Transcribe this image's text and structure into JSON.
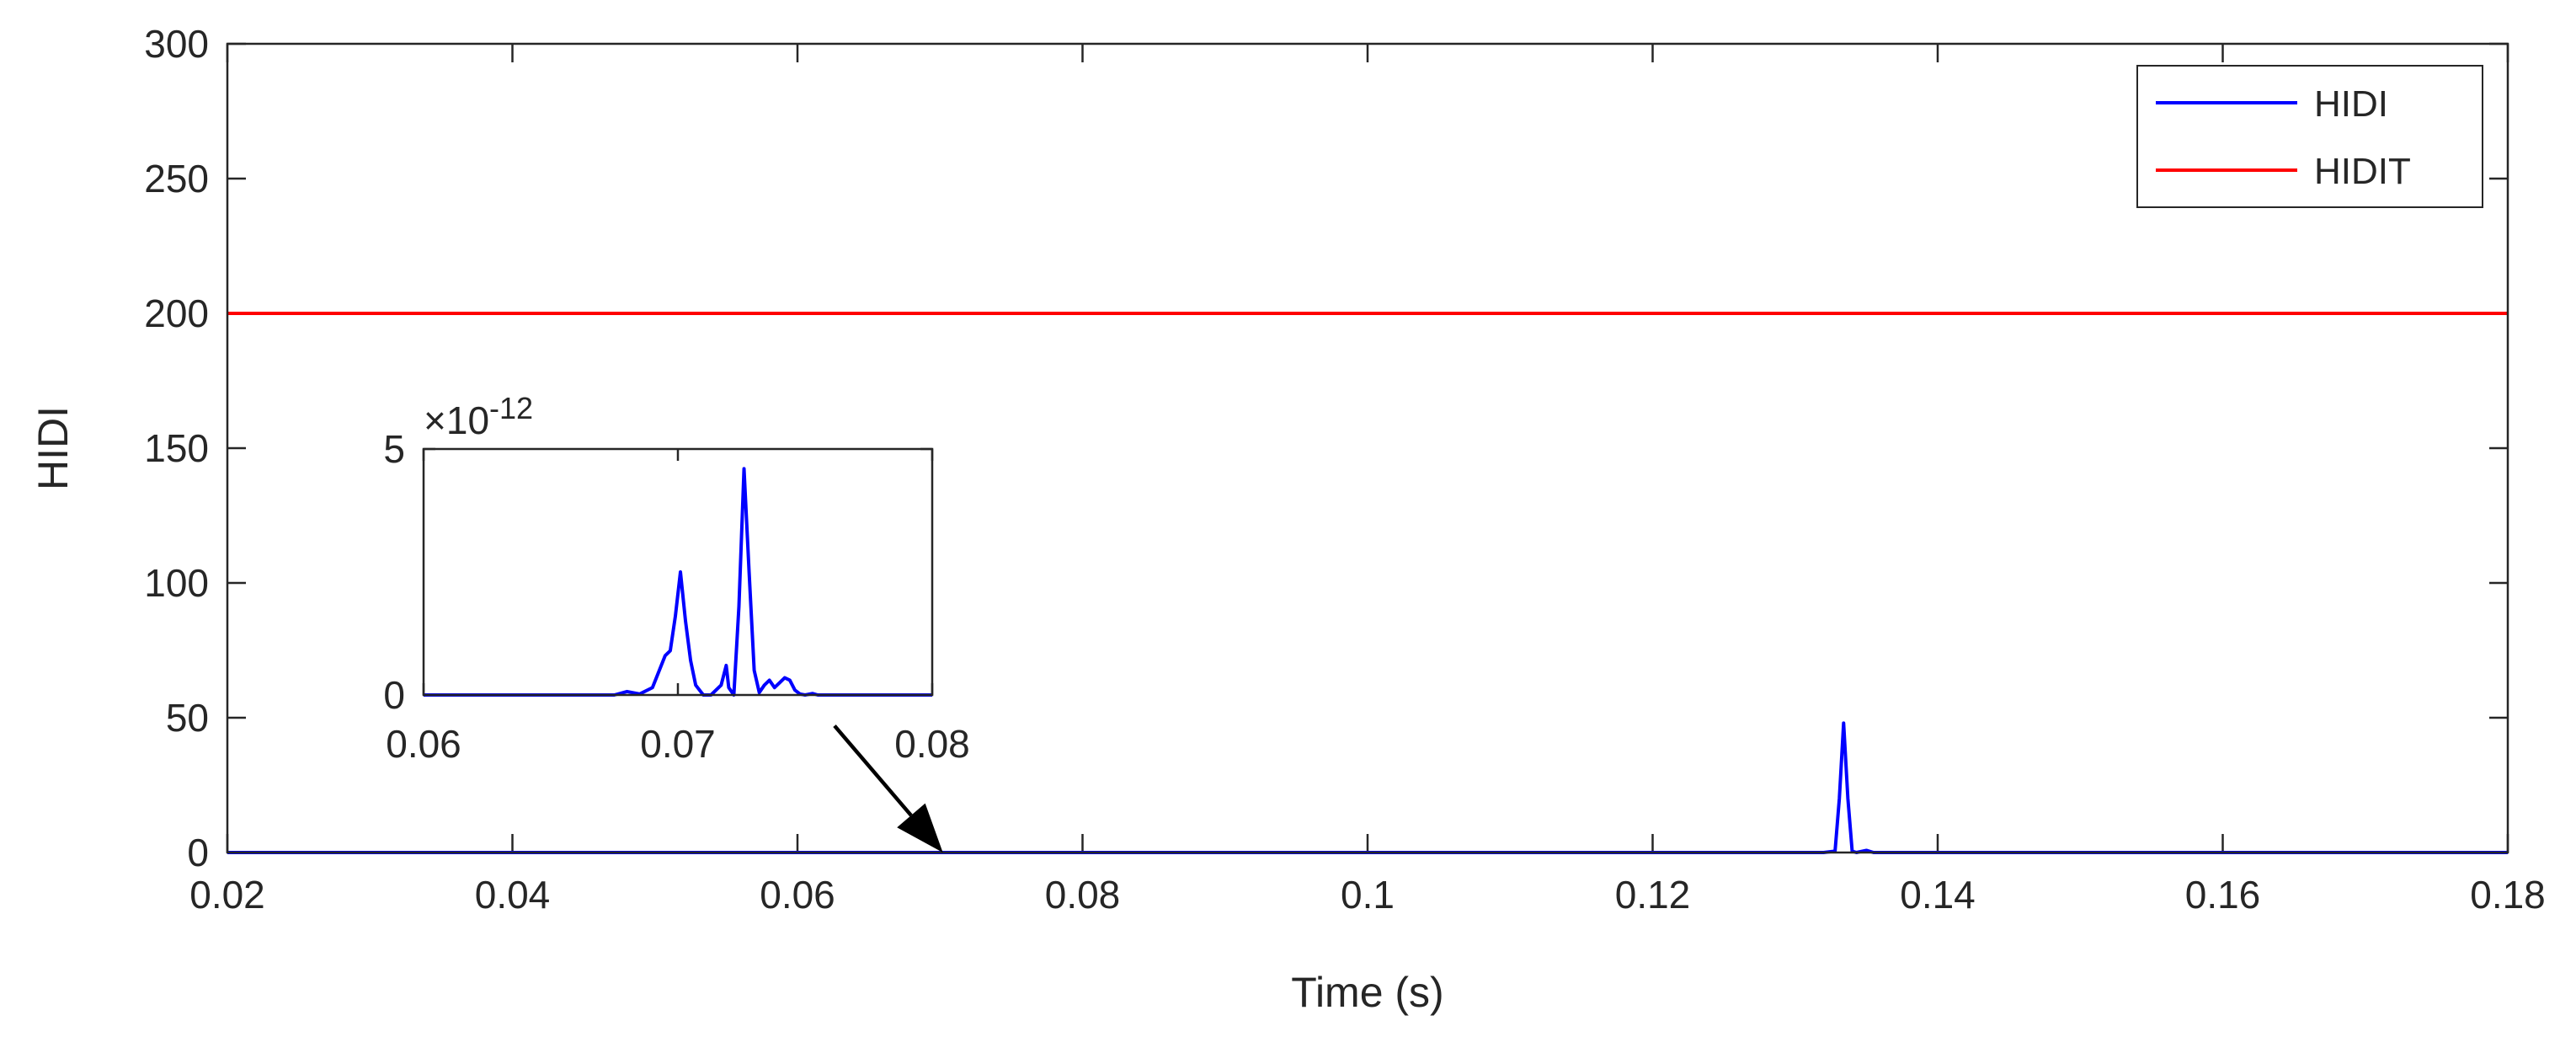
{
  "chart_data": [
    {
      "type": "line",
      "xlabel": "Time (s)",
      "ylabel": "HIDI",
      "xlim": [
        0.02,
        0.18
      ],
      "ylim": [
        0,
        300
      ],
      "xticks": [
        "0.02",
        "0.04",
        "0.06",
        "0.08",
        "0.1",
        "0.12",
        "0.14",
        "0.16",
        "0.18"
      ],
      "yticks": [
        "0",
        "50",
        "100",
        "150",
        "200",
        "250",
        "300"
      ],
      "legend_position": "top-right",
      "series": [
        {
          "name": "HIDI",
          "color": "#0000ff",
          "x": [
            0.02,
            0.132,
            0.1328,
            0.1331,
            0.1334,
            0.1337,
            0.134,
            0.1343,
            0.135,
            0.1355,
            0.136,
            0.18
          ],
          "y": [
            0,
            0,
            0.5,
            20,
            48,
            20,
            0.5,
            0,
            0.8,
            0,
            0,
            0
          ]
        },
        {
          "name": "HIDIT",
          "color": "#ff0000",
          "x": [
            0.02,
            0.18
          ],
          "y": [
            200,
            200
          ]
        }
      ],
      "annotation": {
        "type": "arrow",
        "from": [
          0.0626,
          47
        ],
        "to": [
          0.0702,
          0
        ]
      }
    },
    {
      "type": "line",
      "inset": true,
      "xlim": [
        0.06,
        0.08
      ],
      "ylim": [
        0,
        5
      ],
      "y_multiplier": "×10",
      "y_exponent": "-12",
      "xticks": [
        "0.06",
        "0.07",
        "0.08"
      ],
      "yticks": [
        "0",
        "5"
      ],
      "series": [
        {
          "color": "#0000ff",
          "x": [
            0.06,
            0.0675,
            0.068,
            0.0685,
            0.069,
            0.0695,
            0.0697,
            0.0699,
            0.0701,
            0.0703,
            0.0705,
            0.0707,
            0.071,
            0.0713,
            0.0717,
            0.0719,
            0.072,
            0.0722,
            0.0724,
            0.0726,
            0.0728,
            0.073,
            0.0732,
            0.0734,
            0.0736,
            0.0738,
            0.074,
            0.0742,
            0.0744,
            0.0746,
            0.0748,
            0.075,
            0.0753,
            0.0755,
            0.076,
            0.08
          ],
          "y": [
            0,
            0,
            0.07,
            0.02,
            0.15,
            0.8,
            0.9,
            1.6,
            2.5,
            1.5,
            0.7,
            0.2,
            0,
            0,
            0.2,
            0.6,
            0.15,
            0,
            1.8,
            4.6,
            2.5,
            0.5,
            0.05,
            0.2,
            0.3,
            0.15,
            0.25,
            0.35,
            0.3,
            0.1,
            0.02,
            0,
            0.03,
            0,
            0,
            0
          ]
        }
      ]
    }
  ]
}
